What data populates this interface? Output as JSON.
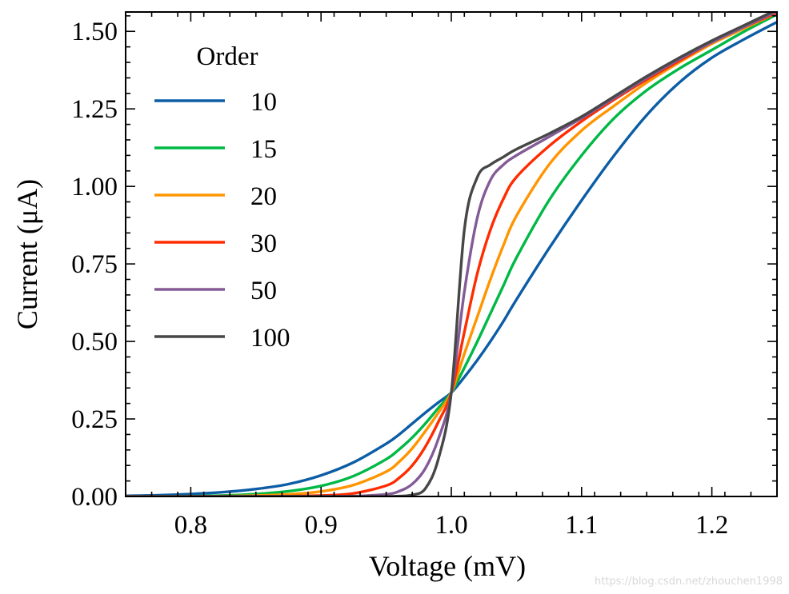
{
  "chart_data": {
    "type": "line",
    "xlabel": "Voltage (mV)",
    "ylabel": "Current (μA)",
    "xlim": [
      0.75,
      1.25
    ],
    "ylim": [
      0.0,
      1.5625
    ],
    "xticks": [
      "0.8",
      "0.9",
      "1.0",
      "1.1",
      "1.2"
    ],
    "xtick_values": [
      0.8,
      0.9,
      1.0,
      1.1,
      1.2
    ],
    "yticks": [
      "0.00",
      "0.25",
      "0.50",
      "0.75",
      "1.00",
      "1.25",
      "1.50"
    ],
    "ytick_values": [
      0.0,
      0.25,
      0.5,
      0.75,
      1.0,
      1.25,
      1.5
    ],
    "grid": false,
    "legend": {
      "title": "Order",
      "placement": "top-left"
    },
    "x": [
      0.75,
      0.775,
      0.8,
      0.825,
      0.85,
      0.875,
      0.9,
      0.925,
      0.95,
      0.96,
      0.97,
      0.98,
      0.99,
      1.0,
      1.01,
      1.02,
      1.03,
      1.04,
      1.05,
      1.075,
      1.1,
      1.125,
      1.15,
      1.175,
      1.2,
      1.225,
      1.25
    ],
    "series": [
      {
        "name": "10",
        "color": "#0C5DA5",
        "values": [
          0.002,
          0.004,
          0.008,
          0.014,
          0.024,
          0.04,
          0.068,
          0.11,
          0.17,
          0.2,
          0.235,
          0.27,
          0.303,
          0.335,
          0.385,
          0.44,
          0.5,
          0.565,
          0.635,
          0.8,
          0.955,
          1.1,
          1.23,
          1.335,
          1.415,
          1.475,
          1.53
        ]
      },
      {
        "name": "15",
        "color": "#00B945",
        "values": [
          0.0,
          0.0,
          0.001,
          0.003,
          0.008,
          0.017,
          0.034,
          0.066,
          0.12,
          0.152,
          0.19,
          0.235,
          0.285,
          0.335,
          0.415,
          0.5,
          0.59,
          0.68,
          0.77,
          0.955,
          1.1,
          1.22,
          1.31,
          1.38,
          1.44,
          1.5,
          1.555
        ]
      },
      {
        "name": "20",
        "color": "#FF9500",
        "values": [
          0.0,
          0.0,
          0.0,
          0.001,
          0.003,
          0.007,
          0.016,
          0.037,
          0.08,
          0.112,
          0.155,
          0.21,
          0.27,
          0.335,
          0.46,
          0.58,
          0.7,
          0.81,
          0.905,
          1.07,
          1.18,
          1.26,
          1.335,
          1.4,
          1.46,
          1.51,
          1.56
        ]
      },
      {
        "name": "30",
        "color": "#FF2C00",
        "values": [
          0.0,
          0.0,
          0.0,
          0.0,
          0.0,
          0.001,
          0.003,
          0.01,
          0.035,
          0.06,
          0.1,
          0.16,
          0.24,
          0.335,
          0.53,
          0.72,
          0.86,
          0.96,
          1.03,
          1.13,
          1.21,
          1.28,
          1.345,
          1.405,
          1.465,
          1.515,
          1.56
        ]
      },
      {
        "name": "50",
        "color": "#845B97",
        "values": [
          0.0,
          0.0,
          0.0,
          0.0,
          0.0,
          0.0,
          0.0,
          0.001,
          0.007,
          0.017,
          0.04,
          0.09,
          0.185,
          0.335,
          0.66,
          0.9,
          1.02,
          1.07,
          1.1,
          1.16,
          1.22,
          1.285,
          1.35,
          1.41,
          1.465,
          1.515,
          1.565
        ]
      },
      {
        "name": "100",
        "color": "#474747",
        "values": [
          0.0,
          0.0,
          0.0,
          0.0,
          0.0,
          0.0,
          0.0,
          0.0,
          0.0,
          0.001,
          0.005,
          0.025,
          0.12,
          0.335,
          0.86,
          1.03,
          1.07,
          1.095,
          1.12,
          1.17,
          1.225,
          1.29,
          1.355,
          1.415,
          1.47,
          1.52,
          1.57
        ]
      }
    ]
  },
  "watermark": "https://blog.csdn.net/zhouchen1998"
}
